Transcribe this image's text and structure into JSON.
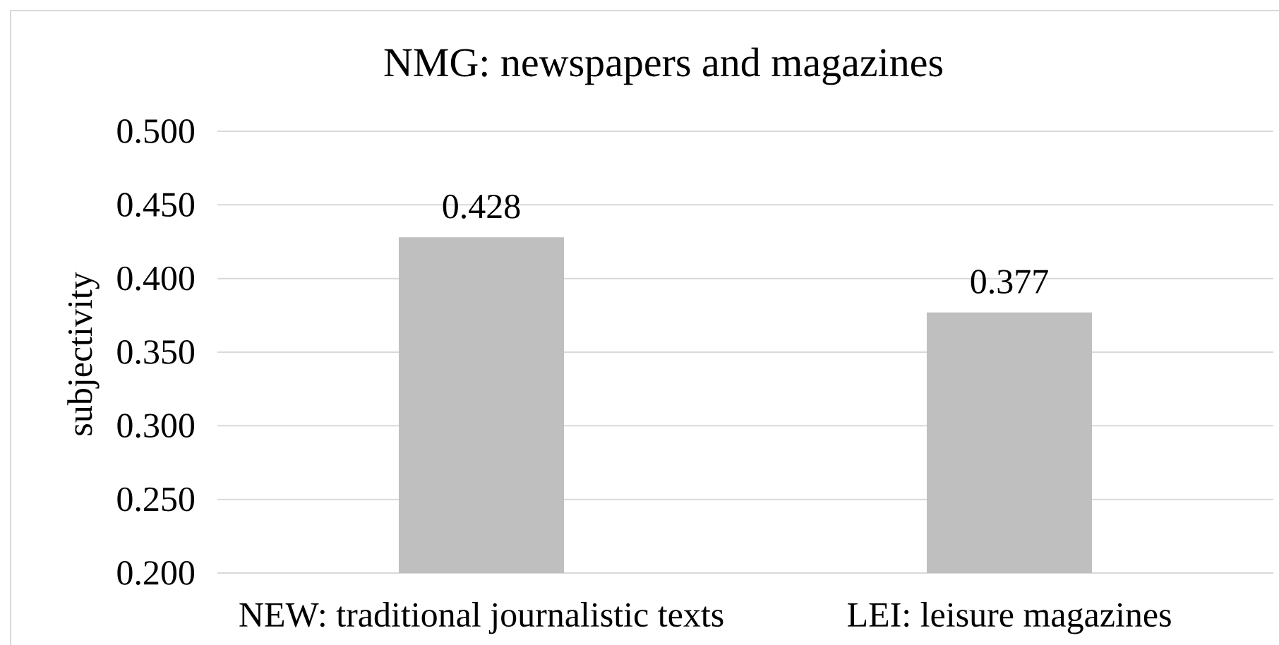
{
  "chart_data": {
    "type": "bar",
    "title": "NMG: newspapers and magazines",
    "ylabel": "subjectivity",
    "categories": [
      "NEW: traditional journalistic texts",
      "LEI: leisure magazines"
    ],
    "values": [
      0.428,
      0.377
    ],
    "color": "#bfbfbf",
    "value_labels": [
      "0.428",
      "0.377"
    ],
    "ylim": [
      0.2,
      0.5
    ],
    "yticks": [
      {
        "value": 0.2,
        "label": "0.200"
      },
      {
        "value": 0.25,
        "label": "0.250"
      },
      {
        "value": 0.3,
        "label": "0.300"
      },
      {
        "value": 0.35,
        "label": "0.350"
      },
      {
        "value": 0.4,
        "label": "0.400"
      },
      {
        "value": 0.45,
        "label": "0.450"
      },
      {
        "value": 0.5,
        "label": "0.500"
      }
    ],
    "grid": "y"
  }
}
